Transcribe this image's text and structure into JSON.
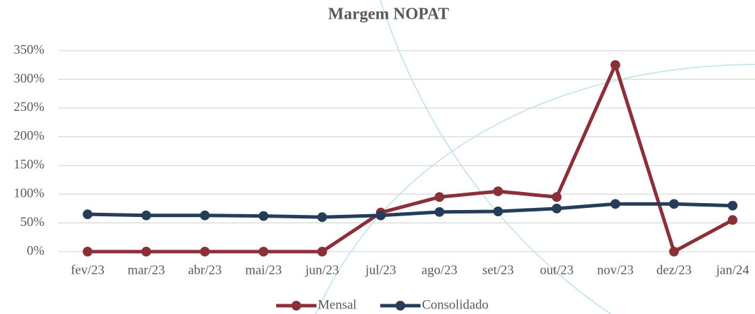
{
  "chart_data": {
    "type": "line",
    "title": "Margem NOPAT",
    "categories": [
      "fev/23",
      "mar/23",
      "abr/23",
      "mai/23",
      "jun/23",
      "jul/23",
      "ago/23",
      "set/23",
      "out/23",
      "nov/23",
      "dez/23",
      "jan/24"
    ],
    "series": [
      {
        "name": "Mensal",
        "color": "#8b2f38",
        "values": [
          0,
          0,
          0,
          0,
          0,
          68,
          95,
          105,
          95,
          325,
          0,
          55
        ]
      },
      {
        "name": "Consolidado",
        "color": "#253d5b",
        "values": [
          65,
          63,
          63,
          62,
          60,
          63,
          69,
          70,
          75,
          83,
          83,
          80
        ]
      }
    ],
    "ylim": [
      0,
      350
    ],
    "yticks": [
      {
        "value": 0,
        "label": "0%"
      },
      {
        "value": 50,
        "label": "50%"
      },
      {
        "value": 100,
        "label": "100%"
      },
      {
        "value": 150,
        "label": "150%"
      },
      {
        "value": 200,
        "label": "200%"
      },
      {
        "value": 250,
        "label": "250%"
      },
      {
        "value": 300,
        "label": "300%"
      },
      {
        "value": 350,
        "label": "350%"
      }
    ],
    "grid": true,
    "legend": "bottom"
  }
}
